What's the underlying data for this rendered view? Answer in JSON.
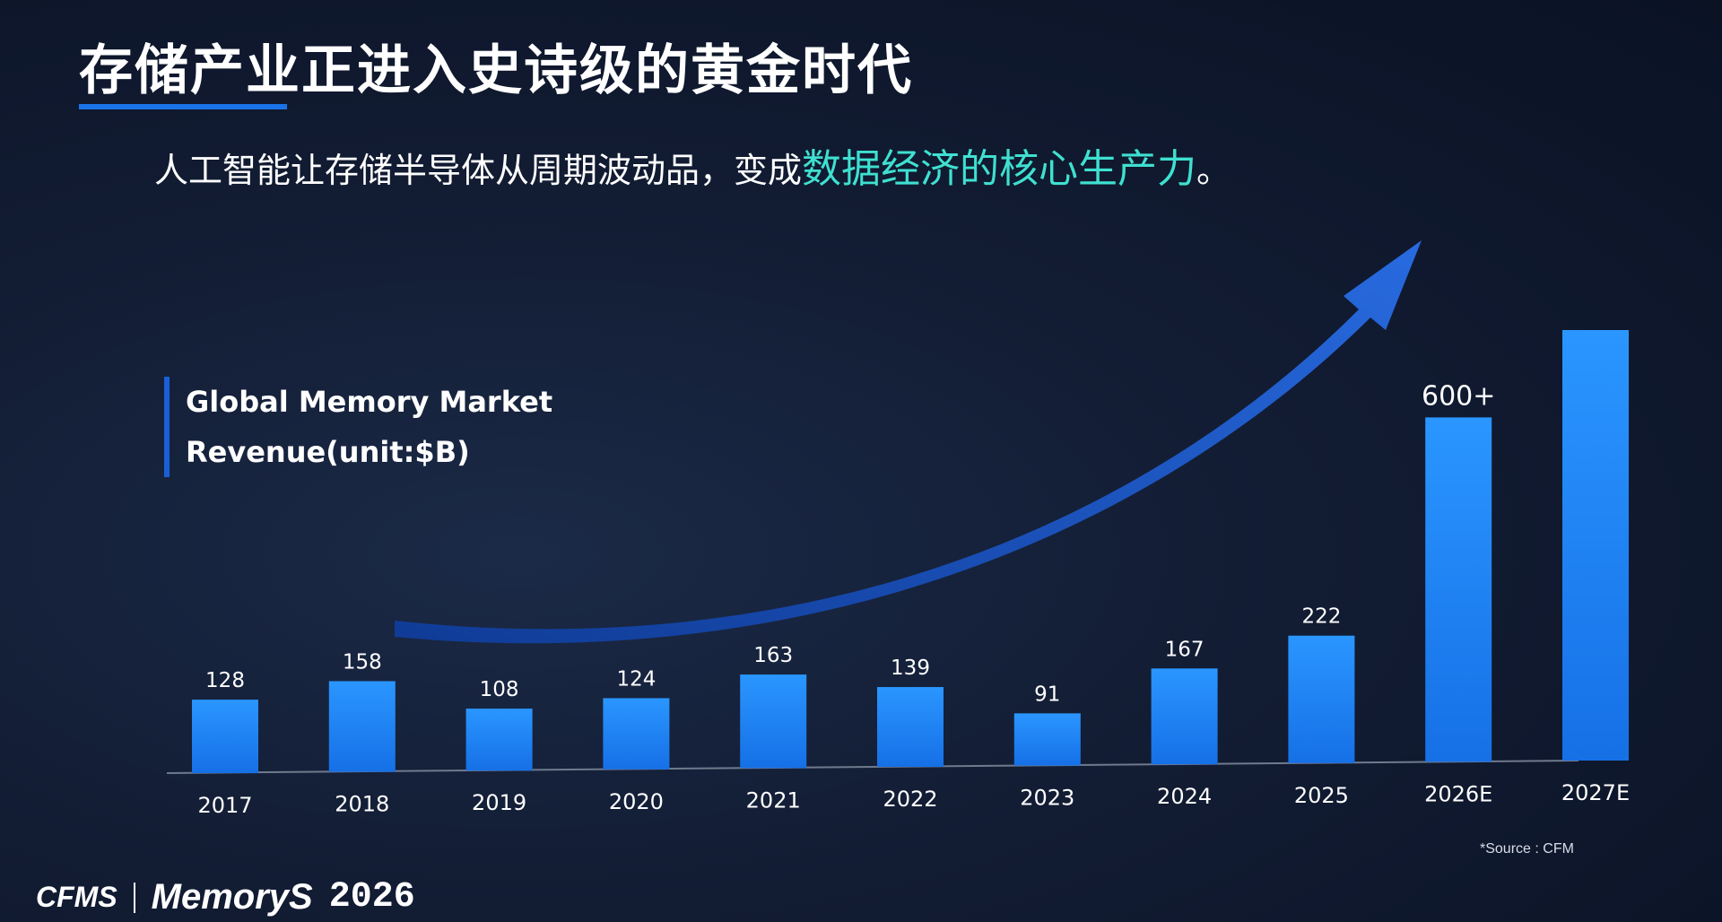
{
  "title": "存储产业正进入史诗级的黄金时代",
  "subtitle": {
    "text": "人工智能让存储半导体从周期波动品，变成",
    "highlight": "数据经济的核心生产力",
    "end": "。"
  },
  "chart_label": {
    "line1": "Global Memory Market",
    "line2": "Revenue(unit:$B)"
  },
  "chart_data": {
    "type": "bar",
    "title": "Global Memory Market Revenue(unit:$B)",
    "categories": [
      "2017",
      "2018",
      "2019",
      "2020",
      "2021",
      "2022",
      "2023",
      "2024",
      "2025",
      "2026E",
      "2027E"
    ],
    "values": [
      128,
      158,
      108,
      124,
      163,
      139,
      91,
      167,
      222,
      600,
      750
    ],
    "data_labels": [
      "128",
      "158",
      "108",
      "124",
      "163",
      "139",
      "91",
      "167",
      "222",
      "600+",
      ""
    ],
    "ylim": [
      0,
      800
    ],
    "grid": false,
    "bar_color": "#1e8bff"
  },
  "source_note": "*Source : CFM",
  "footer": {
    "brand1": "CFMS",
    "brand2": "MemoryS",
    "year": "2026"
  },
  "colors": {
    "background": "#0a1224",
    "accent_blue": "#1a73e8",
    "highlight_cyan": "#3fe0d0",
    "arrow_blue": "#1f5fd8"
  }
}
